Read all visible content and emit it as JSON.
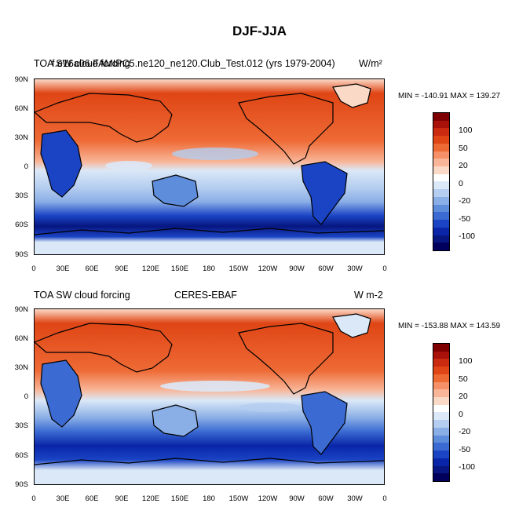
{
  "title": "DJF-JJA",
  "panels": [
    {
      "left_title": "TOA SW cloud forcing",
      "center_title": "f.e16a06.FAMIPC5.ne120_ne120.Club_Test.012 (yrs 1979-2004)",
      "units": "W/m²",
      "minmax": "MIN = -140.91 MAX = 139.27"
    },
    {
      "left_title": "TOA SW cloud forcing",
      "center_title": "CERES-EBAF",
      "units": "W m-2",
      "minmax": "MIN = -153.88 MAX = 143.59"
    }
  ],
  "lat_ticks": [
    "90N",
    "60N",
    "30N",
    "0",
    "30S",
    "60S",
    "90S"
  ],
  "lon_ticks": [
    "0",
    "30E",
    "60E",
    "90E",
    "120E",
    "150E",
    "180",
    "150W",
    "120W",
    "90W",
    "60W",
    "30W",
    "0"
  ],
  "colorbar": {
    "labels": [
      "100",
      "50",
      "20",
      "0",
      "-20",
      "-50",
      "-100"
    ],
    "colors": [
      "#7f0000",
      "#a8120a",
      "#c92a10",
      "#df4515",
      "#ee6a35",
      "#f59068",
      "#f8b597",
      "#fbd9c7",
      "#ffffff",
      "#dbe8f7",
      "#b4cdf0",
      "#8aaee6",
      "#5e8ddc",
      "#3a6ad2",
      "#1a44c4",
      "#0a25a8",
      "#071680",
      "#00005c"
    ]
  }
}
